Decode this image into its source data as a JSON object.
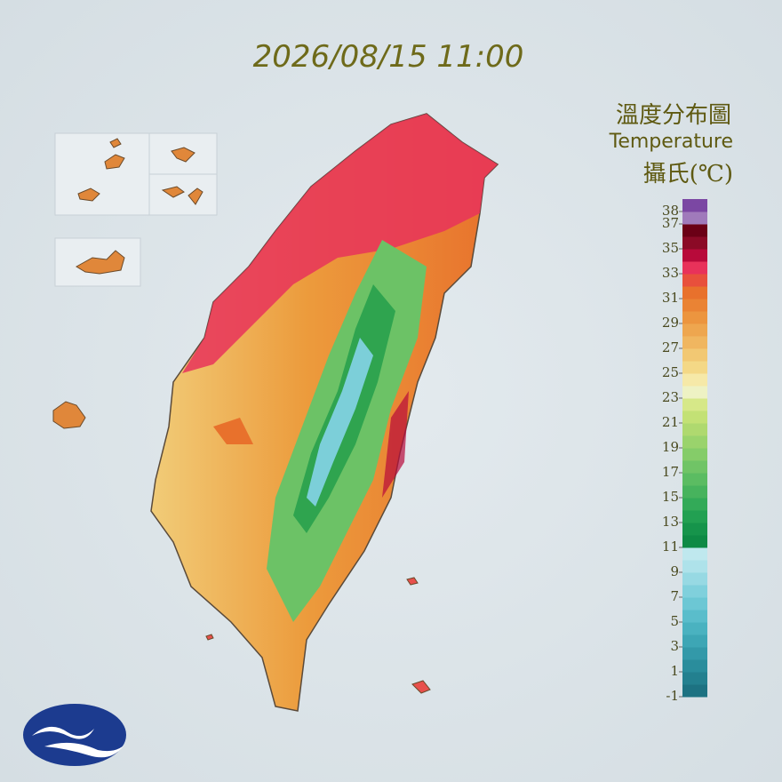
{
  "timestamp": "2026/08/15 11:00",
  "legend": {
    "title": "溫度分布圖",
    "subtitle": "Temperature",
    "unit": "攝氏(℃)",
    "range": [
      -1,
      39
    ],
    "ticks": [
      38,
      37,
      35,
      33,
      31,
      29,
      27,
      25,
      23,
      21,
      19,
      17,
      15,
      13,
      11,
      9,
      7,
      5,
      3,
      1,
      -1
    ],
    "colors": [
      "#1d7282",
      "#23808f",
      "#2a8d9c",
      "#3399a9",
      "#3da6b5",
      "#4ab2c0",
      "#5abdcb",
      "#6cc7d4",
      "#80d0dc",
      "#97d9e3",
      "#aee2ea",
      "#bfe8ee",
      "#0e8a45",
      "#16944b",
      "#22a052",
      "#33aa58",
      "#47b35d",
      "#5bbc62",
      "#70c466",
      "#85cc69",
      "#9ad36c",
      "#afd96f",
      "#c3e175",
      "#d6e888",
      "#eef2c4",
      "#f6e9a8",
      "#f4d886",
      "#f2c873",
      "#f0b660",
      "#eea64f",
      "#ec953f",
      "#ea8334",
      "#e8712c",
      "#e8503c",
      "#e8325a",
      "#b80a3a",
      "#8b0a26",
      "#6b0016",
      "#a07abb",
      "#7b47a3"
    ]
  }
}
